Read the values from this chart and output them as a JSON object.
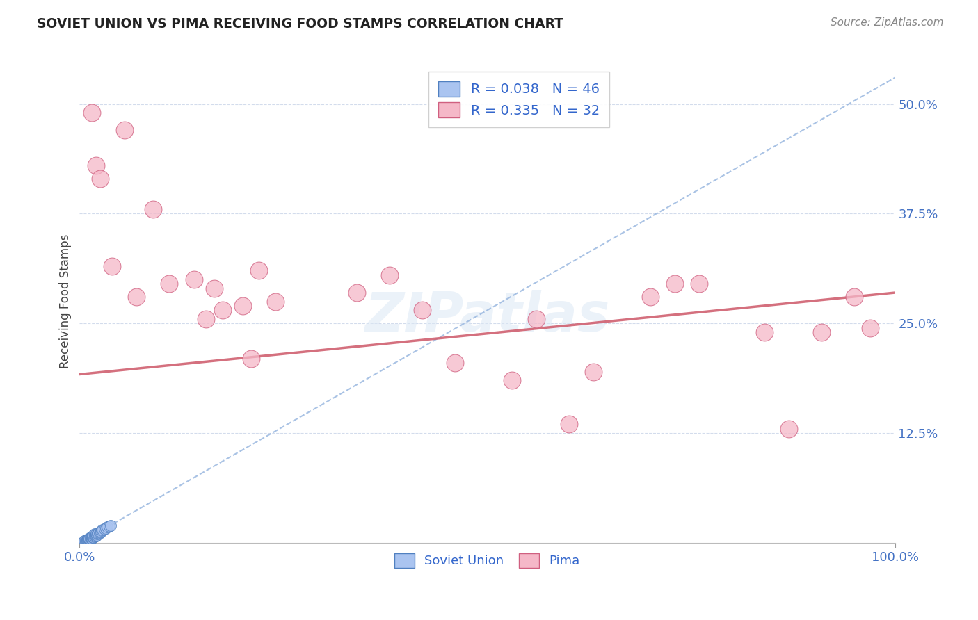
{
  "title": "SOVIET UNION VS PIMA RECEIVING FOOD STAMPS CORRELATION CHART",
  "source_text": "Source: ZipAtlas.com",
  "ylabel": "Receiving Food Stamps",
  "watermark": "ZIPatlas",
  "soviet_R": 0.038,
  "soviet_N": 46,
  "pima_R": 0.335,
  "pima_N": 32,
  "xlim": [
    0.0,
    1.0
  ],
  "ylim": [
    0.0,
    0.55
  ],
  "ytick_positions": [
    0.125,
    0.25,
    0.375,
    0.5
  ],
  "ytick_labels": [
    "12.5%",
    "25.0%",
    "37.5%",
    "50.0%"
  ],
  "soviet_color": "#aac4f0",
  "pima_color": "#f5b8c8",
  "soviet_edge_color": "#5080c0",
  "pima_edge_color": "#d06080",
  "trend_blue_color": "#9ab8e0",
  "trend_pink_color": "#d06070",
  "soviet_x": [
    0.003,
    0.004,
    0.005,
    0.005,
    0.006,
    0.006,
    0.007,
    0.007,
    0.008,
    0.008,
    0.009,
    0.009,
    0.01,
    0.01,
    0.011,
    0.011,
    0.012,
    0.012,
    0.013,
    0.013,
    0.014,
    0.014,
    0.015,
    0.015,
    0.016,
    0.016,
    0.017,
    0.017,
    0.018,
    0.018,
    0.019,
    0.02,
    0.02,
    0.021,
    0.022,
    0.023,
    0.024,
    0.025,
    0.026,
    0.027,
    0.028,
    0.03,
    0.032,
    0.034,
    0.036,
    0.038
  ],
  "soviet_y": [
    0.0,
    0.0,
    0.0,
    0.001,
    0.0,
    0.002,
    0.001,
    0.003,
    0.001,
    0.002,
    0.002,
    0.003,
    0.003,
    0.004,
    0.003,
    0.005,
    0.004,
    0.005,
    0.004,
    0.006,
    0.005,
    0.006,
    0.005,
    0.007,
    0.006,
    0.008,
    0.006,
    0.009,
    0.007,
    0.01,
    0.008,
    0.008,
    0.01,
    0.009,
    0.01,
    0.011,
    0.011,
    0.012,
    0.013,
    0.014,
    0.015,
    0.016,
    0.017,
    0.018,
    0.019,
    0.02
  ],
  "pima_x": [
    0.015,
    0.02,
    0.025,
    0.04,
    0.055,
    0.07,
    0.09,
    0.11,
    0.14,
    0.155,
    0.165,
    0.175,
    0.2,
    0.21,
    0.22,
    0.24,
    0.34,
    0.38,
    0.42,
    0.46,
    0.53,
    0.56,
    0.6,
    0.63,
    0.7,
    0.73,
    0.76,
    0.84,
    0.87,
    0.91,
    0.95,
    0.97
  ],
  "pima_y": [
    0.49,
    0.43,
    0.415,
    0.315,
    0.47,
    0.28,
    0.38,
    0.295,
    0.3,
    0.255,
    0.29,
    0.265,
    0.27,
    0.21,
    0.31,
    0.275,
    0.285,
    0.305,
    0.265,
    0.205,
    0.185,
    0.255,
    0.135,
    0.195,
    0.28,
    0.295,
    0.295,
    0.24,
    0.13,
    0.24,
    0.28,
    0.245
  ],
  "pima_trend_x0": 0.0,
  "pima_trend_y0": 0.192,
  "pima_trend_x1": 1.0,
  "pima_trend_y1": 0.285,
  "soviet_trend_x0": 0.0,
  "soviet_trend_y0": 0.0,
  "soviet_trend_x1": 1.0,
  "soviet_trend_y1": 0.53
}
